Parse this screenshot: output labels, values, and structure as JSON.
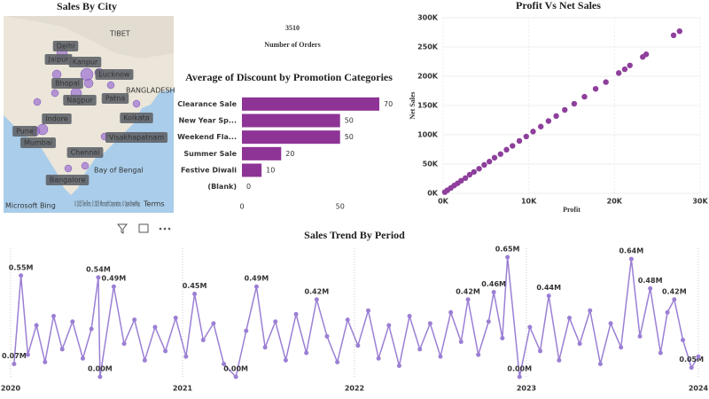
{
  "map": {
    "title": "Sales By City",
    "cities": [
      "Delhi",
      "Jaipur",
      "Kanpur",
      "Lucknow",
      "Bhopal",
      "Patna",
      "Nagpur",
      "Indore",
      "Kolkata",
      "Pune",
      "Mumbai",
      "Visakhapatnam",
      "Chennai",
      "Bangalore"
    ],
    "places": [
      "TIBET",
      "BANGLADESH",
      "Bay of Bengal"
    ],
    "attribution": "© 2025 TomTom, © 2025 Microsoft Corporation, © OpenStreetMap",
    "terms": "Terms",
    "provider": "Microsoft Bing"
  },
  "card": {
    "value": 3510,
    "label": "Number of Orders"
  },
  "chart_data": [
    {
      "type": "bar",
      "orientation": "horizontal",
      "title": "Average of Discount by Promotion Categories",
      "categories": [
        "Clearance Sale",
        "New Year Sp...",
        "Weekend Fla...",
        "Summer Sale",
        "Festive Diwali",
        "(Blank)"
      ],
      "values": [
        70,
        50,
        50,
        20,
        10,
        0
      ],
      "color": "#8e3496",
      "xlim": [
        0,
        70
      ],
      "xticks": [
        0,
        50
      ]
    },
    {
      "type": "scatter",
      "title": "Profit Vs Net Sales",
      "x_label": "Profit",
      "y_label": "Net Sales",
      "color": "#8e3f9c",
      "x": [
        200,
        500,
        900,
        1300,
        1700,
        2100,
        2600,
        3100,
        3600,
        4200,
        4800,
        5400,
        6000,
        6700,
        7400,
        8100,
        8900,
        9700,
        10500,
        11400,
        12300,
        13200,
        14200,
        15300,
        16500,
        17800,
        19000,
        20500,
        21200,
        21800,
        23300,
        23700,
        26900,
        27600
      ],
      "values": [
        2000,
        5200,
        9100,
        13400,
        17200,
        21500,
        26000,
        31800,
        36500,
        42000,
        48500,
        54200,
        60800,
        67000,
        74500,
        81000,
        89500,
        97000,
        105500,
        114000,
        123500,
        132000,
        142500,
        153000,
        165000,
        178500,
        190000,
        205500,
        212000,
        218500,
        233000,
        237500,
        270000,
        277000
      ],
      "xlim": [
        0,
        30000
      ],
      "ylim": [
        0,
        300000
      ],
      "xticks": [
        {
          "value": 0,
          "label": "0K"
        },
        {
          "value": 10000,
          "label": "10K"
        },
        {
          "value": 20000,
          "label": "20K"
        },
        {
          "value": 30000,
          "label": "30K"
        }
      ],
      "yticks": [
        {
          "value": 0,
          "label": "0K"
        },
        {
          "value": 50000,
          "label": "50K"
        },
        {
          "value": 100000,
          "label": "100K"
        },
        {
          "value": 150000,
          "label": "150K"
        },
        {
          "value": 200000,
          "label": "200K"
        },
        {
          "value": 250000,
          "label": "250K"
        },
        {
          "value": 300000,
          "label": "300K"
        }
      ]
    },
    {
      "type": "line",
      "title": "Sales Trend By Period",
      "color": "#9b7fd4",
      "x": [
        2020.02,
        2020.06,
        2020.1,
        2020.15,
        2020.2,
        2020.25,
        2020.3,
        2020.36,
        2020.42,
        2020.47,
        2020.51,
        2020.52,
        2020.6,
        2020.66,
        2020.72,
        2020.78,
        2020.84,
        2020.9,
        2020.96,
        2021.02,
        2021.07,
        2021.12,
        2021.18,
        2021.24,
        2021.31,
        2021.37,
        2021.43,
        2021.48,
        2021.54,
        2021.6,
        2021.66,
        2021.72,
        2021.78,
        2021.84,
        2021.9,
        2021.96,
        2022.02,
        2022.08,
        2022.14,
        2022.2,
        2022.26,
        2022.32,
        2022.38,
        2022.44,
        2022.5,
        2022.56,
        2022.62,
        2022.66,
        2022.72,
        2022.78,
        2022.81,
        2022.86,
        2022.89,
        2022.96,
        2023.02,
        2023.08,
        2023.13,
        2023.19,
        2023.25,
        2023.31,
        2023.37,
        2023.43,
        2023.49,
        2023.55,
        2023.61,
        2023.66,
        2023.72,
        2023.78,
        2023.82,
        2023.86,
        2023.91,
        2023.96,
        2024.0
      ],
      "values": [
        0.07,
        0.55,
        0.12,
        0.28,
        0.08,
        0.33,
        0.15,
        0.3,
        0.1,
        0.26,
        0.54,
        0.0,
        0.49,
        0.18,
        0.31,
        0.09,
        0.27,
        0.14,
        0.32,
        0.11,
        0.45,
        0.2,
        0.29,
        0.07,
        0.0,
        0.25,
        0.49,
        0.16,
        0.3,
        0.09,
        0.34,
        0.13,
        0.42,
        0.22,
        0.08,
        0.31,
        0.17,
        0.36,
        0.1,
        0.28,
        0.06,
        0.33,
        0.15,
        0.29,
        0.11,
        0.35,
        0.19,
        0.42,
        0.12,
        0.3,
        0.46,
        0.21,
        0.65,
        0.0,
        0.27,
        0.14,
        0.44,
        0.09,
        0.32,
        0.18,
        0.36,
        0.07,
        0.29,
        0.16,
        0.64,
        0.22,
        0.48,
        0.13,
        0.35,
        0.42,
        0.2,
        0.05,
        0.11
      ],
      "value_labels": [
        "0.07M",
        "0.55M",
        null,
        null,
        null,
        null,
        null,
        null,
        null,
        null,
        "0.54M",
        "0.00M",
        "0.49M",
        null,
        null,
        null,
        null,
        null,
        null,
        null,
        "0.45M",
        null,
        null,
        null,
        "0.00M",
        null,
        "0.49M",
        null,
        null,
        null,
        null,
        null,
        "0.42M",
        null,
        null,
        null,
        null,
        null,
        null,
        null,
        null,
        null,
        null,
        null,
        null,
        null,
        null,
        "0.42M",
        null,
        null,
        "0.46M",
        null,
        "0.65M",
        "0.00M",
        null,
        null,
        "0.44M",
        null,
        null,
        null,
        null,
        null,
        null,
        null,
        "0.64M",
        null,
        "0.48M",
        null,
        null,
        "0.42M",
        null,
        "0.05M",
        null
      ],
      "xlim": [
        2020,
        2024
      ],
      "xticks": [
        2020,
        2021,
        2022,
        2023,
        2024
      ],
      "grid": true
    }
  ]
}
